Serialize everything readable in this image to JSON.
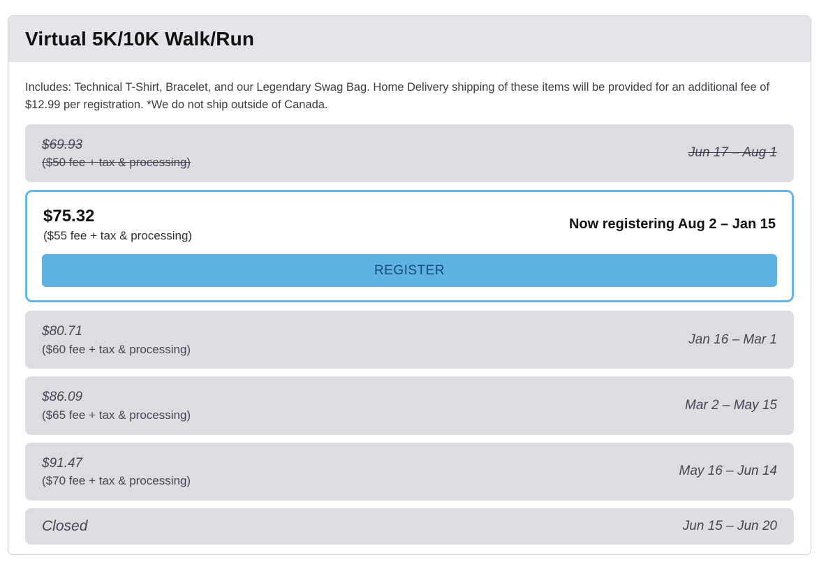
{
  "header": {
    "title": "Virtual 5K/10K Walk/Run"
  },
  "description": "Includes: Technical T-Shirt, Bracelet, and our Legendary Swag Bag. Home Delivery shipping of these items will be provided for an additional fee of $12.99 per registration. *We do not ship outside of Canada.",
  "tiers": {
    "past": {
      "price": "$69.93",
      "fee_note": "($50 fee + tax & processing)",
      "dates": "Jun 17 – Aug 1"
    },
    "active": {
      "price": "$75.32",
      "fee_note": "($55 fee + tax & processing)",
      "status": "Now registering Aug 2 – Jan 15",
      "button_label": "REGISTER"
    },
    "upcoming": [
      {
        "price": "$80.71",
        "fee_note": "($60 fee + tax & processing)",
        "dates": "Jan 16 – Mar 1"
      },
      {
        "price": "$86.09",
        "fee_note": "($65 fee + tax & processing)",
        "dates": "Mar 2 – May 15"
      },
      {
        "price": "$91.47",
        "fee_note": "($70 fee + tax & processing)",
        "dates": "May 16 – Jun 14"
      }
    ],
    "closed": {
      "label": "Closed",
      "dates": "Jun 15 – Jun 20"
    }
  },
  "colors": {
    "header_bg": "#e4e4e9",
    "row_bg": "#dcdce3",
    "active_border": "#67b5e5",
    "button_bg": "#5cb3e3",
    "button_text": "#1c4a78"
  }
}
